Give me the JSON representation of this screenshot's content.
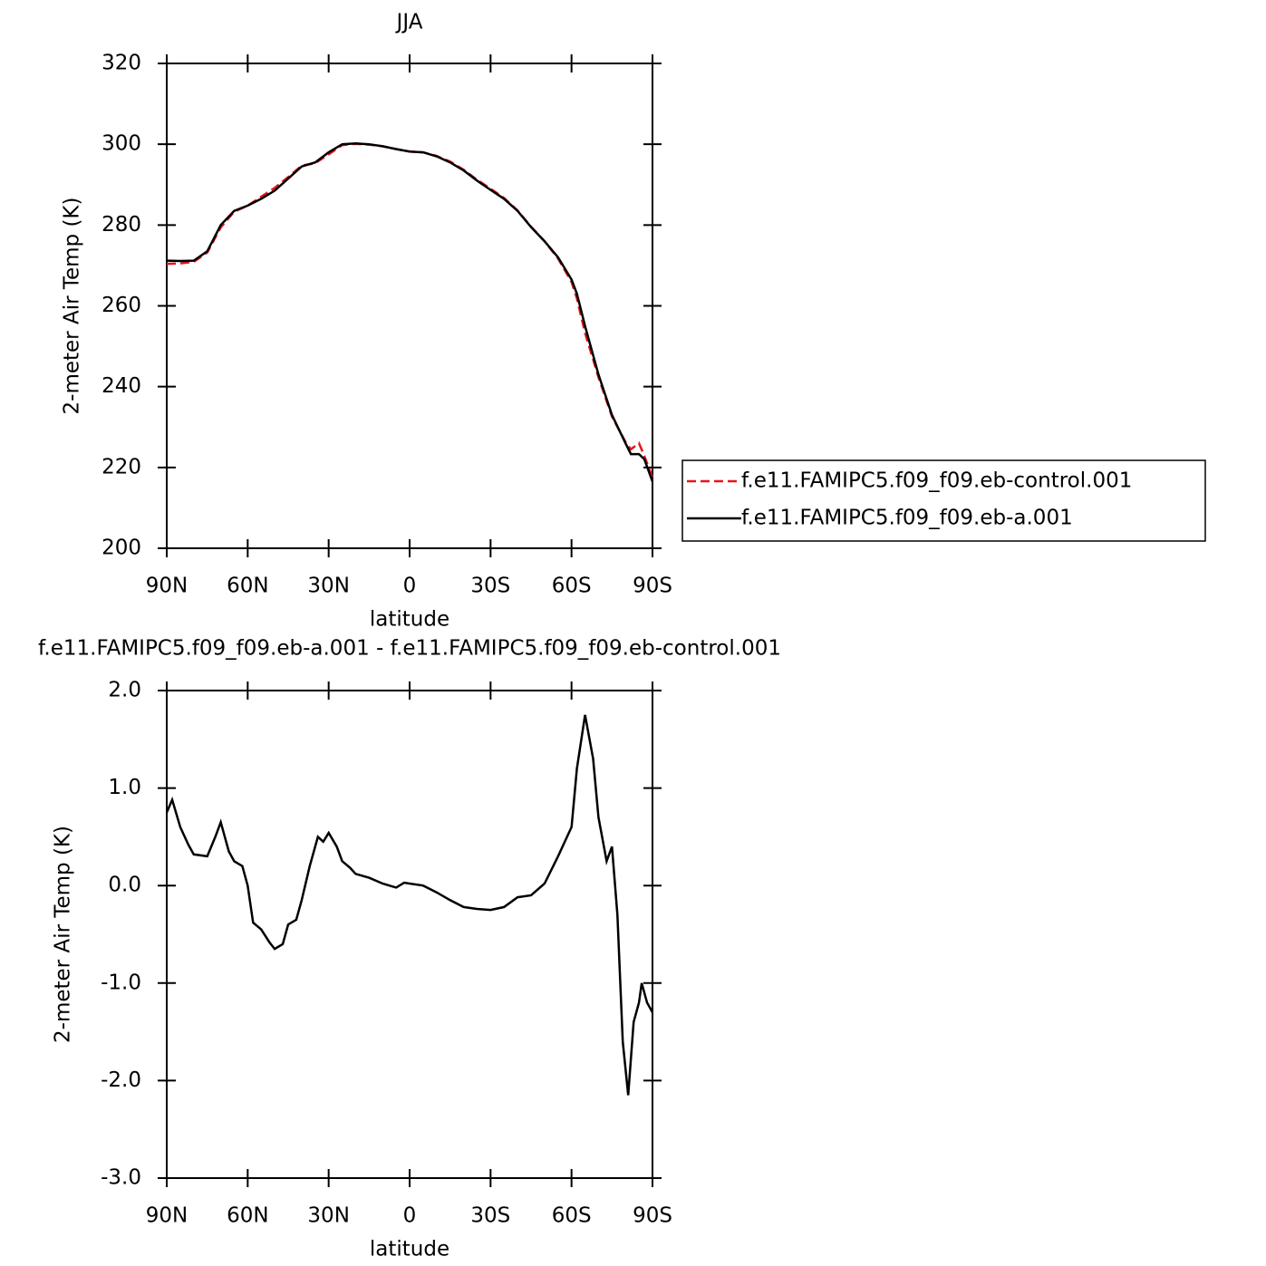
{
  "chart_data": [
    {
      "type": "line",
      "title": "JJA",
      "xlabel": "latitude",
      "ylabel": "2-meter Air Temp (K)",
      "x": [
        90,
        85,
        80,
        75,
        70,
        65,
        60,
        55,
        50,
        45,
        40,
        35,
        30,
        25,
        20,
        15,
        10,
        5,
        0,
        -5,
        -10,
        -15,
        -20,
        -25,
        -30,
        -35,
        -40,
        -45,
        -50,
        -55,
        -60,
        -62,
        -65,
        -70,
        -75,
        -80,
        -82,
        -85,
        -87,
        -90
      ],
      "series": [
        {
          "name": "f.e11.FAMIPC5.f09_f09.eb-control.001",
          "color": "#e8141c",
          "linestyle": "dashed",
          "values": [
            270.4,
            270.5,
            270.9,
            273.2,
            279.4,
            283.3,
            284.8,
            287,
            289.2,
            291.9,
            294.7,
            295.3,
            297.5,
            299.8,
            300.1,
            299.9,
            299.5,
            298.8,
            298.2,
            298,
            297.1,
            295.7,
            293.7,
            291.2,
            289,
            286.7,
            283.6,
            279.6,
            276,
            271.7,
            265.9,
            261.8,
            253.3,
            242.3,
            232.6,
            226.3,
            224.5,
            226,
            222.8,
            217.5
          ]
        },
        {
          "name": "f.e11.FAMIPC5.f09_f09.eb-a.001",
          "color": "#000000",
          "linestyle": "solid",
          "values": [
            271.2,
            271.1,
            271.2,
            273.5,
            280,
            283.5,
            284.8,
            286.5,
            288.5,
            291.5,
            294.5,
            295.5,
            298,
            300,
            300.2,
            300,
            299.5,
            298.8,
            298.2,
            298,
            297,
            295.5,
            293.5,
            291,
            288.7,
            286.5,
            283.5,
            279.5,
            276,
            272,
            266.5,
            263,
            255,
            243,
            233,
            226,
            223.3,
            223.3,
            222,
            216.5
          ]
        }
      ],
      "xlim": [
        90,
        -90
      ],
      "xticks": [
        {
          "value": 90,
          "label": "90N"
        },
        {
          "value": 60,
          "label": "60N"
        },
        {
          "value": 30,
          "label": "30N"
        },
        0,
        {
          "value": -30,
          "label": "30S"
        },
        {
          "value": -60,
          "label": "60S"
        },
        {
          "value": -90,
          "label": "90S"
        }
      ],
      "ylim": [
        200,
        320
      ],
      "yticks": [
        200,
        220,
        240,
        260,
        280,
        300,
        320
      ],
      "legend": "right"
    },
    {
      "type": "line",
      "title": "f.e11.FAMIPC5.f09_f09.eb-a.001 - f.e11.FAMIPC5.f09_f09.eb-control.001",
      "xlabel": "latitude",
      "ylabel": "2-meter Air Temp (K)",
      "x": [
        90,
        88,
        85,
        82,
        80,
        75,
        72,
        70,
        67,
        65,
        62,
        60,
        58,
        55,
        52,
        50,
        47,
        45,
        42,
        40,
        37,
        34,
        32,
        30,
        27,
        25,
        22,
        20,
        15,
        10,
        5,
        2,
        0,
        -5,
        -10,
        -15,
        -20,
        -25,
        -30,
        -35,
        -40,
        -45,
        -50,
        -55,
        -60,
        -62,
        -65,
        -68,
        -70,
        -73,
        -75,
        -77,
        -79,
        -81,
        -83,
        -85,
        -86,
        -88,
        -90
      ],
      "series": [
        {
          "name": "f.e11.FAMIPC5.f09_f09.eb-a.001",
          "color": "#000000",
          "linestyle": "solid",
          "values": [
            0.75,
            0.88,
            0.6,
            0.42,
            0.32,
            0.3,
            0.5,
            0.65,
            0.35,
            0.25,
            0.2,
            0,
            -0.38,
            -0.45,
            -0.58,
            -0.65,
            -0.6,
            -0.4,
            -0.35,
            -0.15,
            0.2,
            0.5,
            0.45,
            0.54,
            0.4,
            0.25,
            0.18,
            0.12,
            0.08,
            0.02,
            -0.02,
            0.03,
            0.02,
            0,
            -0.07,
            -0.15,
            -0.22,
            -0.24,
            -0.25,
            -0.22,
            -0.12,
            -0.1,
            0.02,
            0.3,
            0.6,
            1.2,
            1.75,
            1.3,
            0.7,
            0.25,
            0.4,
            -0.3,
            -1.6,
            -2.15,
            -1.4,
            -1.2,
            -1.0,
            -1.2,
            -1.3
          ]
        }
      ],
      "xlim": [
        90,
        -90
      ],
      "xticks": [
        {
          "value": 90,
          "label": "90N"
        },
        {
          "value": 60,
          "label": "60N"
        },
        {
          "value": 30,
          "label": "30N"
        },
        0,
        {
          "value": -30,
          "label": "30S"
        },
        {
          "value": -60,
          "label": "60S"
        },
        {
          "value": -90,
          "label": "90S"
        }
      ],
      "ylim": [
        -3,
        2
      ],
      "yticks": [
        {
          "value": -3,
          "label": "-3.0"
        },
        {
          "value": -2,
          "label": "-2.0"
        },
        {
          "value": -1,
          "label": "-1.0"
        },
        {
          "value": 0,
          "label": "0.0"
        },
        {
          "value": 1,
          "label": "1.0"
        },
        {
          "value": 2,
          "label": "2.0"
        }
      ]
    }
  ]
}
